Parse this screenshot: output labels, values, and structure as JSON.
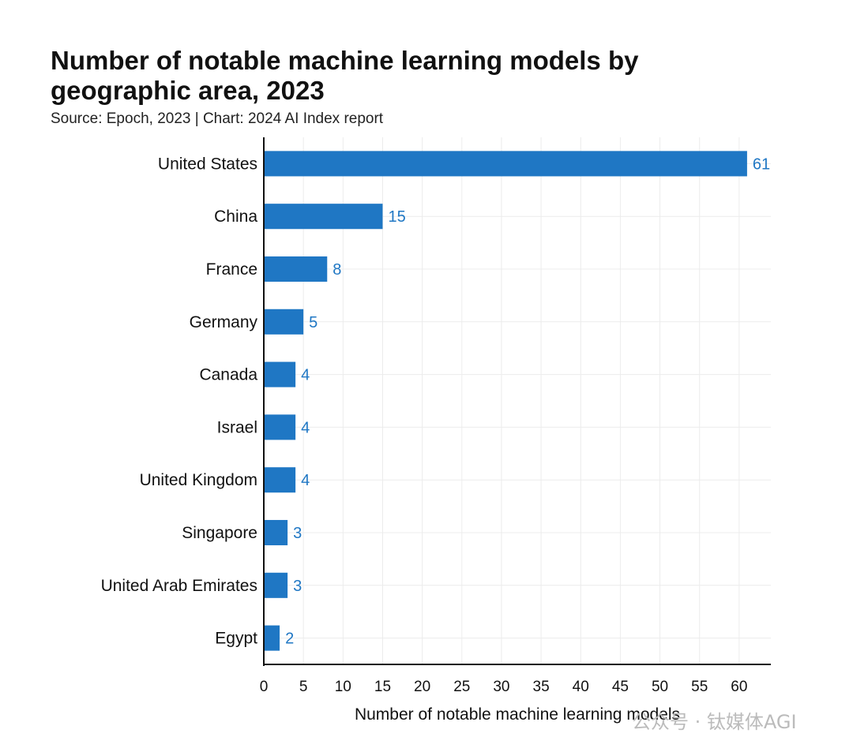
{
  "chart_data": {
    "type": "bar",
    "orientation": "horizontal",
    "title": "Number of notable machine learning models by geographic area, 2023",
    "subtitle": "Source: Epoch, 2023 | Chart: 2024 AI Index report",
    "categories": [
      "United States",
      "China",
      "France",
      "Germany",
      "Canada",
      "Israel",
      "United Kingdom",
      "Singapore",
      "United Arab Emirates",
      "Egypt"
    ],
    "values": [
      61,
      15,
      8,
      5,
      4,
      4,
      4,
      3,
      3,
      2
    ],
    "xlabel": "Number of notable machine learning models",
    "ylabel": "",
    "xlim": [
      0,
      64
    ],
    "xticks": [
      0,
      5,
      10,
      15,
      20,
      25,
      30,
      35,
      40,
      45,
      50,
      55,
      60
    ],
    "grid": true,
    "bar_color": "#1f77c4",
    "label_color": "#1f77c4"
  },
  "watermark": "公众号 · 钛媒体AGI"
}
